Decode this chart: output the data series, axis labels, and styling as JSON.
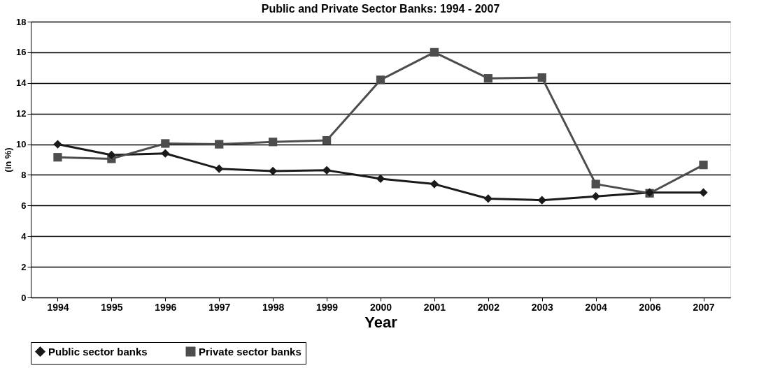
{
  "chart_data": {
    "type": "line",
    "title": "Public and Private Sector Banks: 1994 - 2007",
    "xlabel": "Year",
    "ylabel": "(in %)",
    "categories": [
      "1994",
      "1995",
      "1996",
      "1997",
      "1998",
      "1999",
      "2000",
      "2001",
      "2002",
      "2003",
      "2004",
      "2006",
      "2007"
    ],
    "series": [
      {
        "name": "Public sector banks",
        "color": "#1a1a1a",
        "marker": "diamond",
        "values": [
          10.0,
          9.3,
          9.4,
          8.4,
          8.25,
          8.3,
          7.75,
          7.4,
          6.45,
          6.35,
          6.6,
          6.85,
          6.85
        ]
      },
      {
        "name": "Private sector banks",
        "color": "#4d4d4d",
        "marker": "square",
        "values": [
          9.15,
          9.05,
          10.05,
          10.0,
          10.15,
          10.25,
          14.2,
          16.0,
          14.3,
          14.35,
          7.4,
          6.8,
          8.65
        ]
      }
    ],
    "ylim": [
      0,
      18
    ],
    "yticks": [
      0,
      2,
      4,
      6,
      8,
      10,
      12,
      14,
      16,
      18
    ],
    "grid": "y",
    "legend": "bottom",
    "line_style": "solid"
  }
}
